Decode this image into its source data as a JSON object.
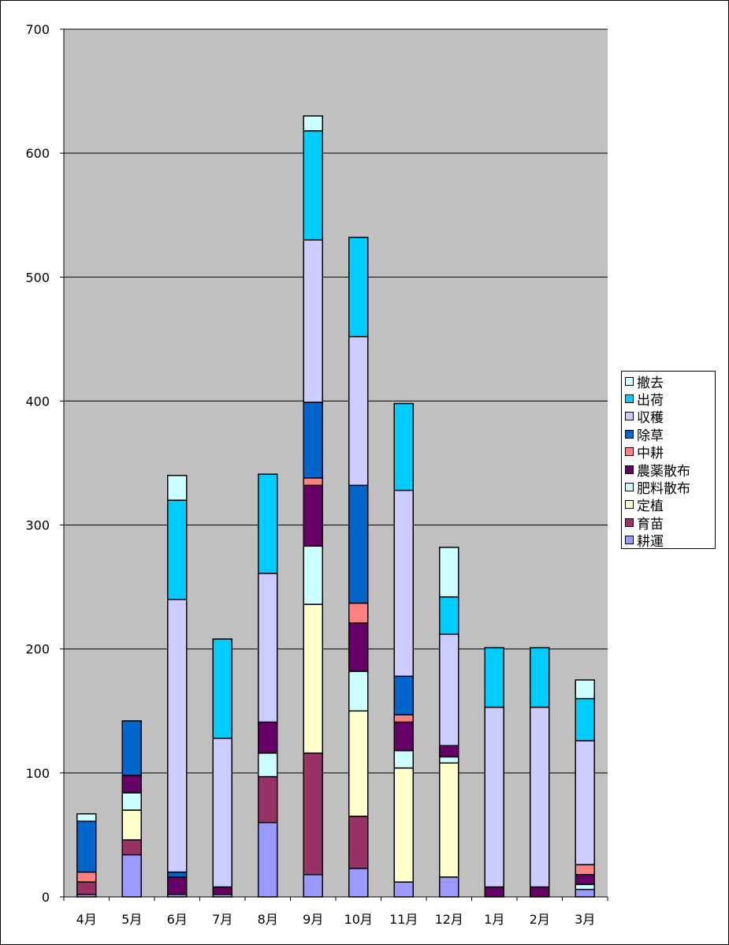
{
  "chart_data": {
    "type": "bar",
    "stacked": true,
    "title": "",
    "xlabel": "",
    "ylabel": "",
    "ylim": [
      0,
      700
    ],
    "yticks": [
      0,
      100,
      200,
      300,
      400,
      500,
      600,
      700
    ],
    "grid": true,
    "legend_position": "right",
    "plot_background": "#C0C0C0",
    "categories": [
      "4月",
      "5月",
      "6月",
      "7月",
      "8月",
      "9月",
      "10月",
      "11月",
      "12月",
      "1月",
      "2月",
      "3月"
    ],
    "series": [
      {
        "name": "耕運",
        "color": "#9999FF",
        "values": [
          2,
          34,
          2,
          2,
          60,
          18,
          23,
          12,
          16,
          0,
          0,
          6
        ]
      },
      {
        "name": "育苗",
        "color": "#993366",
        "values": [
          10,
          12,
          0,
          0,
          37,
          98,
          42,
          0,
          0,
          0,
          0,
          0
        ]
      },
      {
        "name": "定植",
        "color": "#FFFFCC",
        "values": [
          0,
          24,
          0,
          0,
          0,
          120,
          85,
          92,
          92,
          0,
          0,
          0
        ]
      },
      {
        "name": "肥料散布",
        "color": "#CCFFFF",
        "values": [
          0,
          14,
          0,
          0,
          19,
          47,
          32,
          14,
          5,
          0,
          0,
          4
        ]
      },
      {
        "name": "農薬散布",
        "color": "#660066",
        "values": [
          0,
          14,
          14,
          6,
          25,
          49,
          39,
          23,
          9,
          8,
          8,
          8
        ]
      },
      {
        "name": "中耕",
        "color": "#FF8080",
        "values": [
          8,
          0,
          0,
          0,
          0,
          6,
          16,
          6,
          0,
          0,
          0,
          8
        ]
      },
      {
        "name": "除草",
        "color": "#0066CC",
        "values": [
          41,
          44,
          4,
          0,
          0,
          61,
          95,
          31,
          0,
          0,
          0,
          0
        ]
      },
      {
        "name": "収穫",
        "color": "#CCCCFF",
        "values": [
          0,
          0,
          220,
          120,
          120,
          131,
          120,
          150,
          90,
          145,
          145,
          100
        ]
      },
      {
        "name": "出荷",
        "color": "#00CCFF",
        "values": [
          0,
          0,
          80,
          80,
          80,
          88,
          80,
          70,
          30,
          48,
          48,
          34
        ]
      },
      {
        "name": "撤去",
        "color": "#CCFFFF",
        "values": [
          6,
          0,
          20,
          0,
          0,
          12,
          0,
          0,
          40,
          0,
          0,
          15
        ]
      }
    ]
  }
}
